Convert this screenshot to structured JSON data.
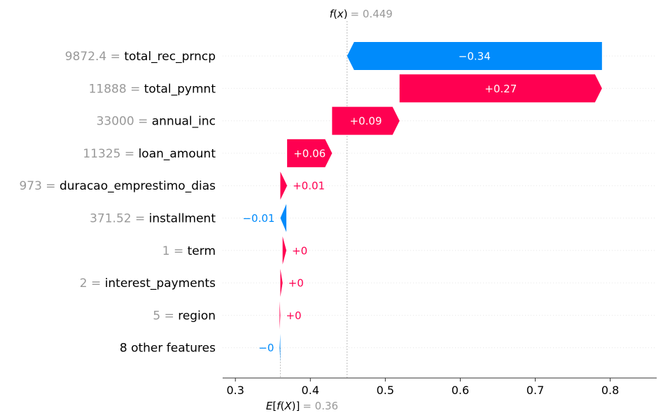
{
  "chart_data": {
    "type": "waterfall",
    "fx": {
      "prefix": "f(x)",
      "value_text": "0.449",
      "value": 0.449
    },
    "base": {
      "prefix": "E[f(X)]",
      "value_text": "0.36",
      "value": 0.36
    },
    "xlim": [
      0.283,
      0.862
    ],
    "xticks": [
      0.3,
      0.4,
      0.5,
      0.6,
      0.7,
      0.8
    ],
    "xtick_labels": [
      "0.3",
      "0.4",
      "0.5",
      "0.6",
      "0.7",
      "0.8"
    ],
    "features": [
      {
        "value_text": "9872.4",
        "name": "total_rec_prncp",
        "contribution": -0.34,
        "label": "−0.34"
      },
      {
        "value_text": "11888",
        "name": "total_pymnt",
        "contribution": 0.27,
        "label": "+0.27"
      },
      {
        "value_text": "33000",
        "name": "annual_inc",
        "contribution": 0.09,
        "label": "+0.09"
      },
      {
        "value_text": "11325",
        "name": "loan_amount",
        "contribution": 0.06,
        "label": "+0.06"
      },
      {
        "value_text": "973",
        "name": "duracao_emprestimo_dias",
        "contribution": 0.009,
        "label": "+0.01"
      },
      {
        "value_text": "371.52",
        "name": "installment",
        "contribution": -0.008,
        "label": "−0.01"
      },
      {
        "value_text": "1",
        "name": "term",
        "contribution": 0.005,
        "label": "+0"
      },
      {
        "value_text": "2",
        "name": "interest_payments",
        "contribution": 0.003,
        "label": "+0"
      },
      {
        "value_text": "5",
        "name": "region",
        "contribution": 0.001,
        "label": "+0"
      },
      {
        "value_text": "",
        "name": "8 other features",
        "contribution": -0.001,
        "label": "−0"
      }
    ],
    "colors": {
      "positive": "#ff0051",
      "negative": "#008bfb",
      "muted": "#999999"
    }
  }
}
